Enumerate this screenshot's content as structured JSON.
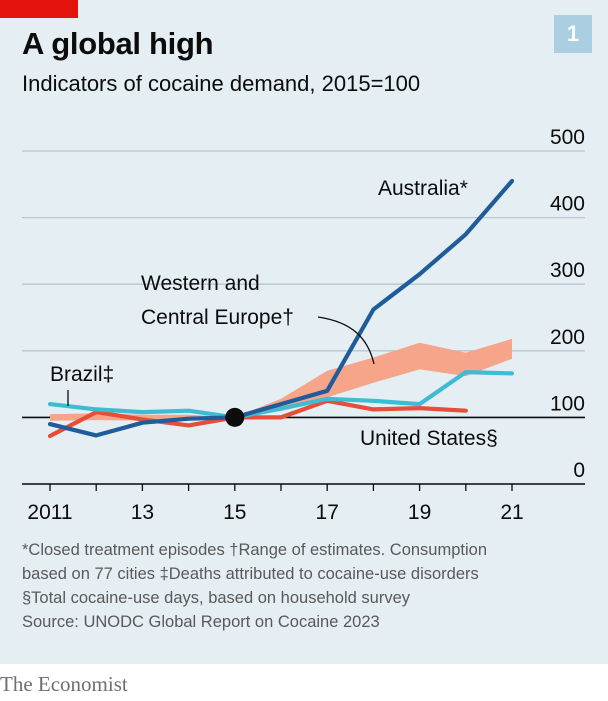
{
  "badge": "1",
  "title": "A global high",
  "subtitle": "Indicators of cocaine demand, 2015=100",
  "footnotes": [
    "*Closed treatment episodes   †Range of estimates. Consumption",
    "based on 77 cities   ‡Deaths attributed to cocaine-use disorders",
    "§Total cocaine-use days, based on household survey",
    "Source: UNODC Global Report on Cocaine 2023"
  ],
  "footer": "The Economist",
  "colors": {
    "australia": "#1f5c99",
    "europe_range": "#f6a48a",
    "brazil": "#3ebcd2",
    "united_states": "#e64e3a",
    "grid": "#b7c6cf",
    "baseline": "#0c0c0c"
  },
  "chart_data": {
    "type": "line",
    "xlim": [
      2011,
      2022
    ],
    "ylim": [
      0,
      500
    ],
    "x_ticks": [
      2011,
      2013,
      2015,
      2017,
      2019,
      2021
    ],
    "x_tick_labels": [
      "2011",
      "13",
      "15",
      "17",
      "19",
      "21"
    ],
    "y_ticks": [
      0,
      100,
      200,
      300,
      400,
      500
    ],
    "y_tick_labels": [
      "0",
      "100",
      "200",
      "300",
      "400",
      "500"
    ],
    "reference_line": 100,
    "reference_point": [
      2015,
      100
    ],
    "series": [
      {
        "name": "Australia*",
        "key": "australia",
        "x": [
          2011,
          2012,
          2013,
          2014,
          2015,
          2016,
          2017,
          2018,
          2019,
          2020,
          2021
        ],
        "y": [
          90,
          73,
          92,
          98,
          100,
          120,
          140,
          262,
          315,
          375,
          455
        ]
      },
      {
        "name": "Brazil‡",
        "key": "brazil",
        "x": [
          2011,
          2012,
          2013,
          2014,
          2015,
          2016,
          2017,
          2018,
          2019,
          2020,
          2021
        ],
        "y": [
          120,
          112,
          108,
          110,
          100,
          113,
          128,
          125,
          120,
          168,
          166
        ]
      },
      {
        "name": "United States§",
        "key": "united_states",
        "x": [
          2011,
          2012,
          2013,
          2014,
          2015,
          2016,
          2017,
          2018,
          2019,
          2020
        ],
        "y": [
          72,
          108,
          97,
          88,
          100,
          100,
          125,
          112,
          114,
          110
        ]
      },
      {
        "name": "Western and Central Europe†",
        "key": "europe_range",
        "type": "range",
        "x": [
          2011,
          2012,
          2013,
          2014,
          2015,
          2016,
          2017,
          2018,
          2019,
          2020,
          2021
        ],
        "low": [
          95,
          96,
          95,
          96,
          100,
          115,
          130,
          152,
          172,
          162,
          188
        ],
        "high": [
          105,
          106,
          104,
          104,
          100,
          128,
          170,
          190,
          212,
          197,
          218
        ]
      }
    ],
    "labels": {
      "australia": "Australia*",
      "europe_line1": "Western and",
      "europe_line2": "Central Europe†",
      "brazil": "Brazil‡",
      "united_states": "United States§"
    }
  }
}
